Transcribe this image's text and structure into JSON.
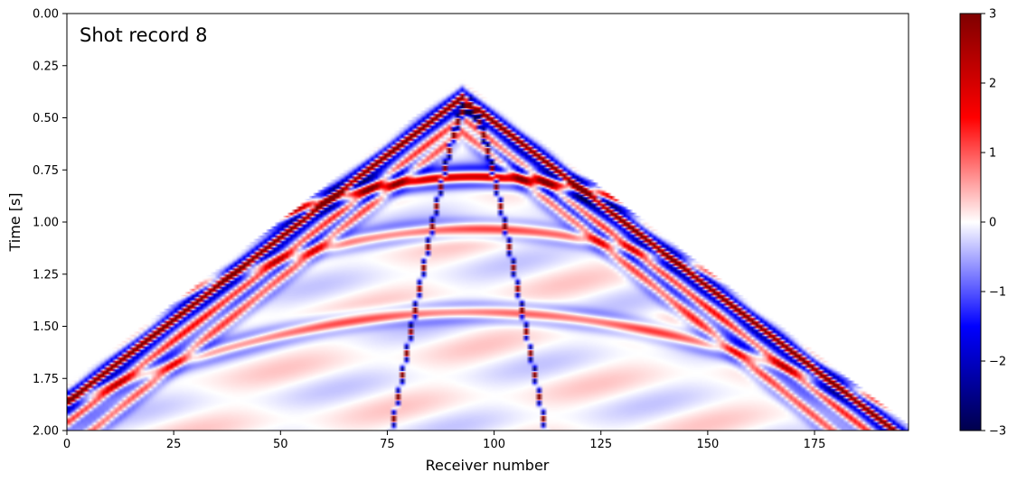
{
  "chart_data": {
    "type": "heatmap",
    "title": "Shot record 8",
    "xlabel": "Receiver number",
    "ylabel": "Time [s]",
    "xlim": [
      0,
      197
    ],
    "ylim": [
      2.0,
      0.0
    ],
    "x_ticks": [
      0,
      25,
      50,
      75,
      100,
      125,
      150,
      175
    ],
    "x_tick_labels": [
      "0",
      "25",
      "50",
      "75",
      "100",
      "125",
      "150",
      "175"
    ],
    "y_ticks": [
      0.0,
      0.25,
      0.5,
      0.75,
      1.0,
      1.25,
      1.5,
      1.75,
      2.0
    ],
    "y_tick_labels": [
      "0.00",
      "0.25",
      "0.50",
      "0.75",
      "1.00",
      "1.25",
      "1.50",
      "1.75",
      "2.00"
    ],
    "colorbar": {
      "colormap": "seismic",
      "vmin": -3,
      "vmax": 3,
      "ticks": [
        3,
        2,
        1,
        0,
        -1,
        -2,
        -3
      ],
      "tick_labels": [
        "3",
        "2",
        "1",
        "0",
        "−1",
        "−2",
        "−3"
      ]
    },
    "source_receiver": 92,
    "events": [
      {
        "kind": "direct-wave",
        "apex_time_s": 0.38,
        "slowness_s_per_receiver": 0.0158
      },
      {
        "kind": "hyperbola",
        "apex_time_s": 0.44,
        "apex_receiver": 93.5,
        "spread": 0.108
      },
      {
        "kind": "reflection",
        "apex_time_s": 0.78,
        "apex_receiver": 95
      },
      {
        "kind": "reflection",
        "apex_time_s": 1.03,
        "apex_receiver": 95
      },
      {
        "kind": "reflection",
        "apex_time_s": 1.43,
        "apex_receiver": 95
      }
    ],
    "grid": false,
    "colors": {
      "negative_max": "#00004c",
      "positive_max": "#7f0000",
      "zero": "#ffffff"
    }
  }
}
